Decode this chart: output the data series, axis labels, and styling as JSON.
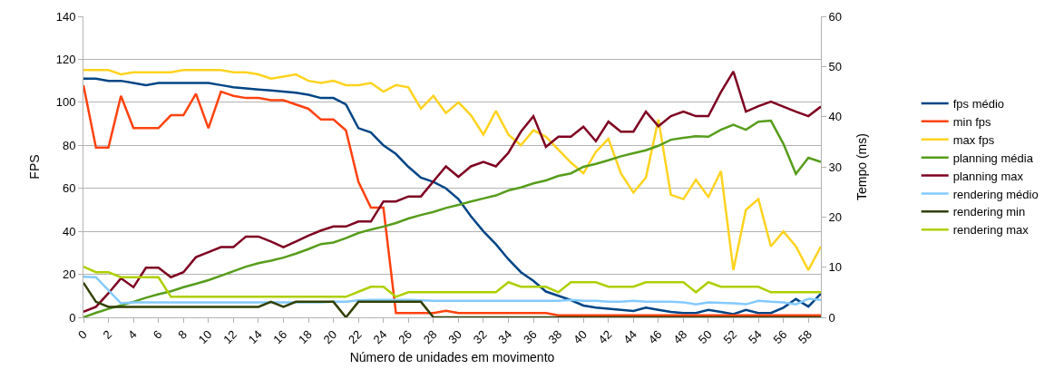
{
  "chart_data": {
    "type": "line",
    "xlabel": "Número de unidades em movimento",
    "ylabel": "FPS",
    "y2label": "Tempo (ms)",
    "x": [
      0,
      1,
      2,
      3,
      4,
      5,
      6,
      7,
      8,
      9,
      10,
      11,
      12,
      13,
      14,
      15,
      16,
      17,
      18,
      19,
      20,
      21,
      22,
      23,
      24,
      25,
      26,
      27,
      28,
      29,
      30,
      31,
      32,
      33,
      34,
      35,
      36,
      37,
      38,
      39,
      40,
      41,
      42,
      43,
      44,
      45,
      46,
      47,
      48,
      49,
      50,
      51,
      52,
      53,
      54,
      55,
      56,
      57,
      58,
      59
    ],
    "xlim": [
      0,
      59
    ],
    "xticks": [
      0,
      2,
      4,
      6,
      8,
      10,
      12,
      14,
      16,
      18,
      20,
      22,
      24,
      26,
      28,
      30,
      32,
      34,
      36,
      38,
      40,
      42,
      44,
      46,
      48,
      50,
      52,
      54,
      56,
      58
    ],
    "ylim": [
      0,
      140
    ],
    "yticks": [
      0,
      20,
      40,
      60,
      80,
      100,
      120,
      140
    ],
    "y2lim": [
      0,
      60
    ],
    "y2ticks": [
      0,
      10,
      20,
      30,
      40,
      50,
      60
    ],
    "grid": "y",
    "legend": "right",
    "marker": "none",
    "line_style": "solid",
    "series": [
      {
        "name": "fps médio",
        "color": "#004586",
        "values": [
          111,
          111,
          110,
          110,
          109,
          108,
          109,
          109,
          109,
          109,
          109,
          108,
          107,
          106.5,
          106,
          105.5,
          105,
          104.5,
          103.5,
          102,
          102,
          99,
          88,
          86,
          80,
          76,
          70,
          65,
          63,
          60,
          55,
          47,
          40,
          34,
          27,
          21,
          17,
          12,
          10,
          8,
          5.5,
          4.5,
          4,
          3.5,
          3,
          4.5,
          3.5,
          2.5,
          2,
          2,
          3.5,
          2.5,
          1.5,
          3.5,
          2,
          2,
          4.5,
          8.5,
          5,
          11
        ]
      },
      {
        "name": "min fps",
        "color": "#ff420e",
        "values": [
          108,
          79,
          79,
          103,
          88,
          88,
          88,
          94,
          94,
          104,
          88,
          105,
          103,
          102,
          102,
          101,
          101,
          99,
          97,
          92,
          92,
          87,
          63,
          51,
          51,
          2,
          2,
          2,
          2,
          3,
          2,
          2,
          2,
          2,
          2,
          2,
          2,
          2,
          1,
          1,
          1,
          1,
          1,
          1,
          1,
          1,
          1,
          1,
          1,
          1,
          1,
          1,
          1,
          1,
          1,
          1,
          1,
          1,
          1,
          1
        ]
      },
      {
        "name": "max fps",
        "color": "#ffd320",
        "values": [
          115,
          115,
          115,
          113,
          114,
          114,
          114,
          114,
          115,
          115,
          115,
          115,
          114,
          114,
          113,
          111,
          112,
          113,
          110,
          109,
          110,
          108,
          108,
          109,
          105,
          108,
          107,
          97,
          103,
          95,
          100,
          94,
          85,
          96,
          85,
          80,
          87,
          84,
          78,
          72,
          67,
          77,
          83,
          67,
          58,
          65,
          92,
          57,
          55,
          64,
          56,
          68,
          22,
          50,
          55,
          33,
          40,
          33,
          22,
          33
        ]
      },
      {
        "name": "planning média",
        "color": "#579d1c",
        "axis": "y2",
        "values": [
          0,
          0.9,
          1.7,
          2.4,
          3.1,
          3.9,
          4.6,
          5.2,
          6,
          6.7,
          7.4,
          8.3,
          9.2,
          10.1,
          10.8,
          11.3,
          11.9,
          12.7,
          13.6,
          14.6,
          14.9,
          15.8,
          16.8,
          17.5,
          18.1,
          18.8,
          19.7,
          20.4,
          21,
          21.8,
          22.4,
          23.1,
          23.7,
          24.3,
          25.3,
          25.9,
          26.7,
          27.3,
          28.2,
          28.7,
          30,
          30.6,
          31.3,
          32.1,
          32.7,
          33.3,
          34.2,
          35.4,
          35.8,
          36.1,
          36,
          37.4,
          38.4,
          37.4,
          39,
          39.2,
          34.6,
          28.6,
          31.8,
          31
        ]
      },
      {
        "name": "planning max",
        "color": "#7e0021",
        "axis": "y2",
        "values": [
          1.1,
          2.1,
          4.8,
          7.8,
          6,
          9.9,
          9.9,
          8,
          9,
          12,
          13,
          14,
          14,
          16.1,
          16.1,
          15.1,
          14,
          15.1,
          16.3,
          17.3,
          18.1,
          18.1,
          19.1,
          19.1,
          23.1,
          23.1,
          24.1,
          24.1,
          27.1,
          30.1,
          28,
          30.1,
          31,
          30.1,
          32.8,
          37,
          40.1,
          34,
          36,
          36,
          38,
          35.1,
          39,
          37,
          37,
          41,
          38.1,
          40.1,
          41,
          40.1,
          40.1,
          44.9,
          49,
          41,
          42.1,
          43,
          42,
          41,
          40.1,
          42
        ]
      },
      {
        "name": "rendering médio",
        "color": "#83caff",
        "axis": "y2",
        "values": [
          8.1,
          8,
          5.4,
          2.8,
          3,
          3,
          3,
          3,
          3,
          3,
          3,
          3,
          3,
          3,
          3,
          3,
          3,
          3,
          3,
          3,
          3.1,
          3.1,
          3.4,
          3.5,
          3.5,
          3.5,
          3.5,
          3.4,
          3.3,
          3.3,
          3.3,
          3.3,
          3.3,
          3.3,
          3.3,
          3.3,
          3.3,
          3.3,
          3.3,
          3.5,
          3.3,
          3.3,
          3.1,
          3.1,
          3.3,
          3.1,
          3.1,
          3.1,
          3,
          2.6,
          3,
          2.9,
          2.8,
          2.6,
          3.3,
          3.1,
          3,
          2.6,
          3.7,
          3.5
        ]
      },
      {
        "name": "rendering min",
        "color": "#314004",
        "axis": "y2",
        "values": [
          6.9,
          3.1,
          2.1,
          2.1,
          2.1,
          2.1,
          2.1,
          2.1,
          2.1,
          2.1,
          2.1,
          2.1,
          2.1,
          2.1,
          2.1,
          3.1,
          2.1,
          3.1,
          3.1,
          3.1,
          3.1,
          0,
          3.1,
          3.1,
          3.1,
          3.1,
          3.1,
          3.1,
          0,
          0,
          0,
          0,
          0,
          0,
          0,
          0,
          0,
          0,
          0,
          0,
          0,
          0,
          0,
          0,
          0,
          0,
          0,
          0,
          0,
          0,
          0,
          0,
          0,
          0,
          0,
          0,
          0,
          0,
          0,
          0
        ]
      },
      {
        "name": "rendering max",
        "color": "#aecf00",
        "axis": "y2",
        "values": [
          10.1,
          9,
          9,
          8,
          8,
          8,
          8,
          4.1,
          4.1,
          4.1,
          4.1,
          4.1,
          4.1,
          4.1,
          4.1,
          4.1,
          4.1,
          4.1,
          4.1,
          4.1,
          4.1,
          4.1,
          5.1,
          6.1,
          6.1,
          4.1,
          5,
          5,
          5,
          5,
          5,
          5,
          5,
          5,
          7,
          6.1,
          6.1,
          6.1,
          5,
          7,
          7,
          7,
          6.1,
          6.1,
          6.1,
          7,
          7,
          7,
          7,
          5,
          7,
          6.1,
          6.1,
          6.1,
          6.1,
          5,
          5,
          5,
          5,
          5
        ]
      }
    ]
  }
}
